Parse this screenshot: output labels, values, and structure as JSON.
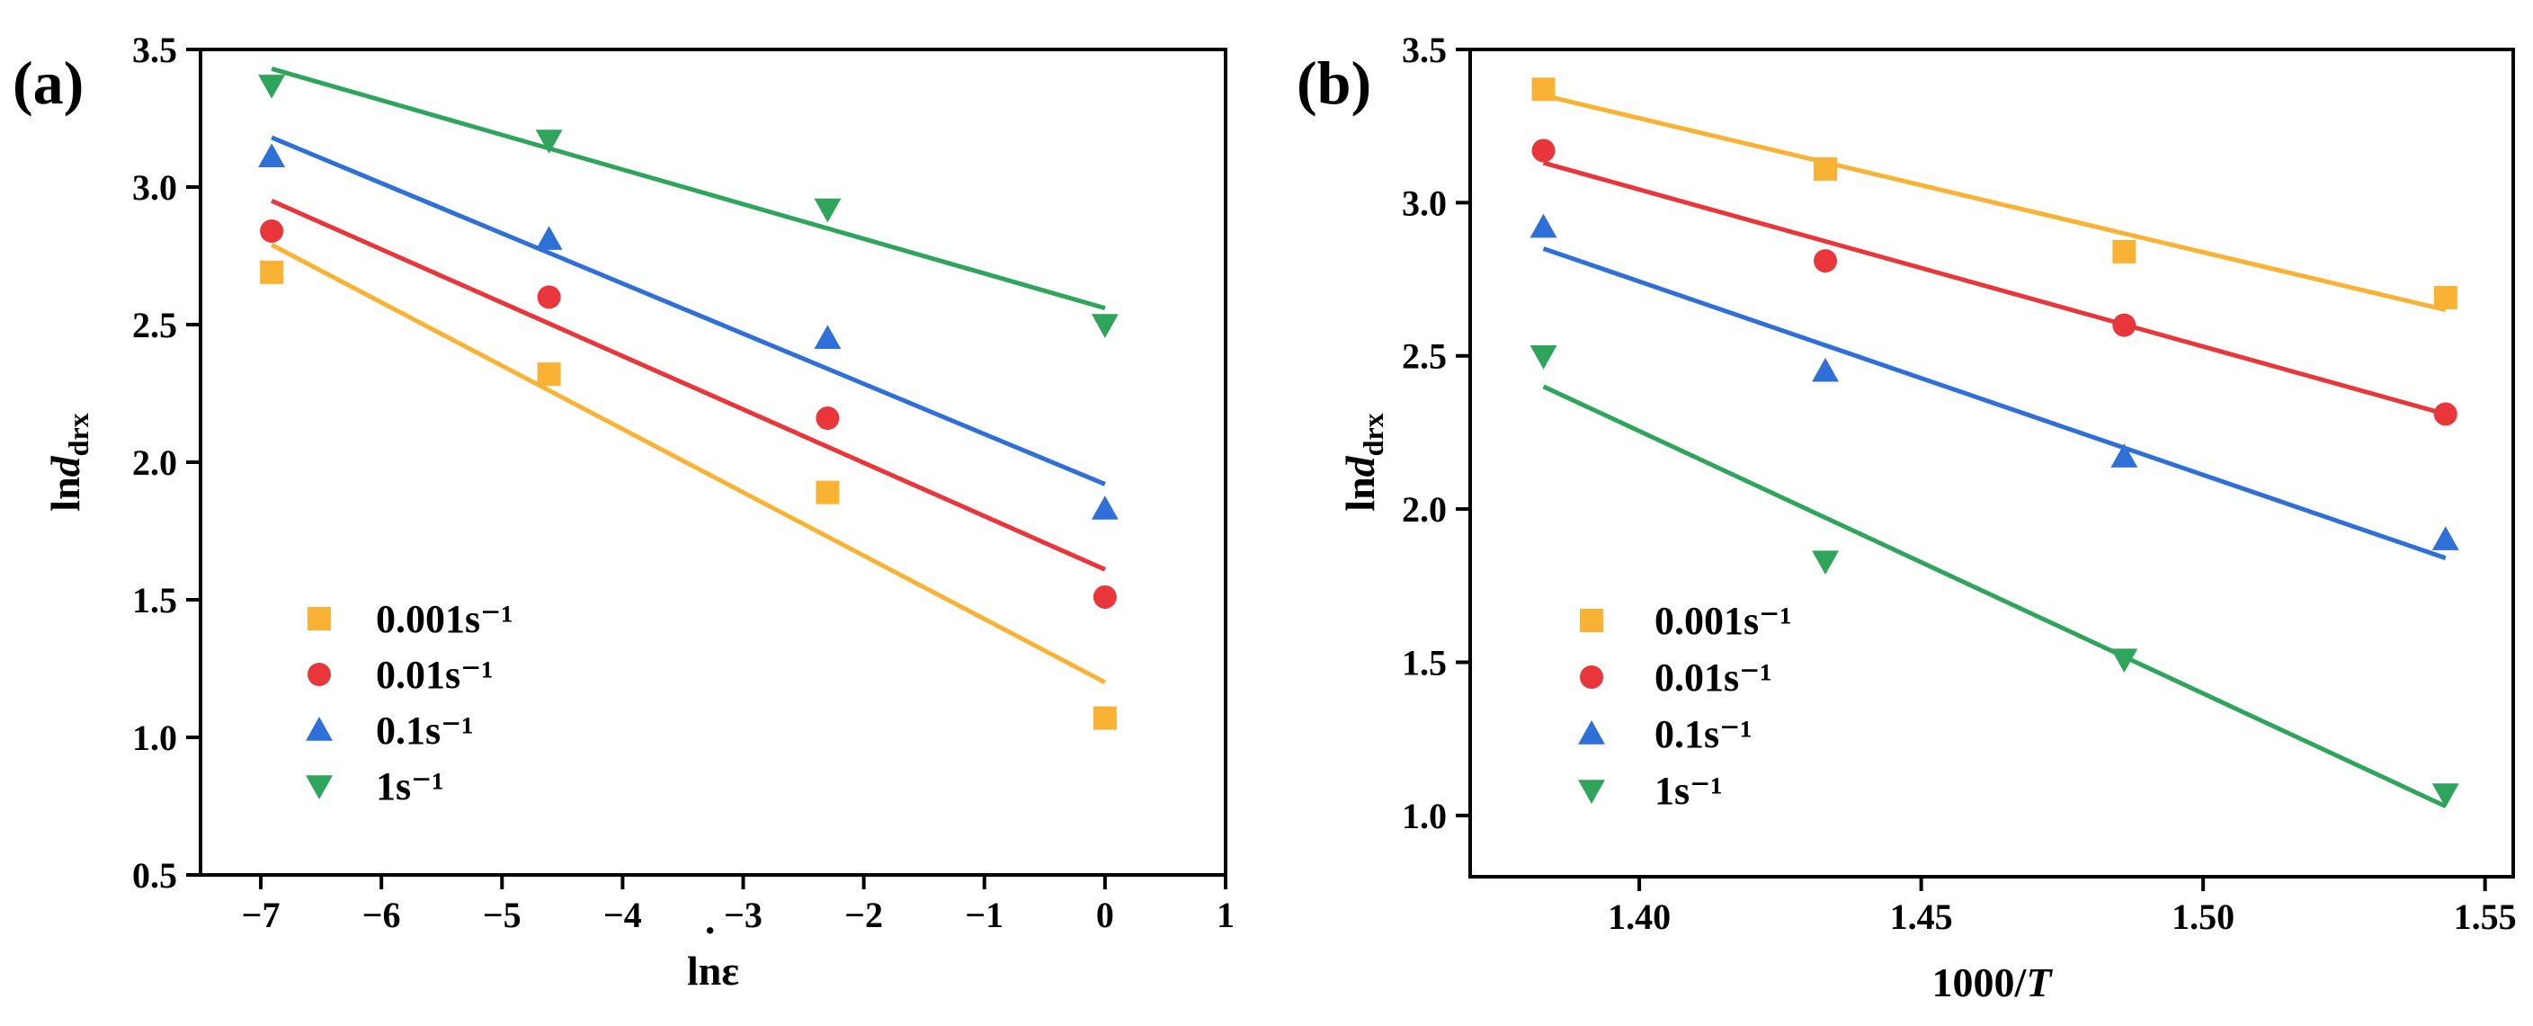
{
  "colors": {
    "0.001s^-1": "#f9b233",
    "0.01s^-1": "#e8363a",
    "0.1s^-1": "#2f6fd8",
    "1s^-1": "#2ea55a"
  },
  "chart_data": [
    {
      "panel_label": "(a)",
      "type": "scatter",
      "xlabel": "lnε̇",
      "xlabel_display": {
        "prefix": "ln",
        "symbol": "ε",
        "dot": "·"
      },
      "ylabel": "lnd_drx",
      "ylabel_display": {
        "prefix": "ln",
        "italic": "d",
        "sub": "drx"
      },
      "xlim": [
        -7.5,
        1
      ],
      "ylim": [
        0.5,
        3.5
      ],
      "x_ticks": [
        -7,
        -6,
        -5,
        -4,
        -3,
        -2,
        -1,
        0,
        1
      ],
      "x_tick_labels": [
        "−7",
        "−6",
        "−5",
        "−4",
        "−3",
        "−2",
        "−1",
        "0",
        "1"
      ],
      "y_ticks": [
        0.5,
        1.0,
        1.5,
        2.0,
        2.5,
        3.0,
        3.5
      ],
      "y_tick_labels": [
        "0.5",
        "1.0",
        "1.5",
        "2.0",
        "2.5",
        "3.0",
        "3.5"
      ],
      "legend_location": "bottom-left",
      "series": [
        {
          "name": "0.001s⁻¹",
          "key": "0.001s^-1",
          "marker": "square",
          "x": [
            -6.91,
            -4.61,
            -2.3,
            0
          ],
          "y": [
            2.69,
            2.32,
            1.89,
            1.07
          ],
          "fit": {
            "x": [
              -6.91,
              0
            ],
            "y": [
              2.79,
              1.2
            ]
          }
        },
        {
          "name": "0.01s⁻¹",
          "key": "0.01s^-1",
          "marker": "circle",
          "x": [
            -6.91,
            -4.61,
            -2.3,
            0
          ],
          "y": [
            2.84,
            2.6,
            2.16,
            1.51
          ],
          "fit": {
            "x": [
              -6.91,
              0
            ],
            "y": [
              2.95,
              1.61
            ]
          }
        },
        {
          "name": "0.1s⁻¹",
          "key": "0.1s^-1",
          "marker": "triangle-up",
          "x": [
            -6.91,
            -4.61,
            -2.3,
            0
          ],
          "y": [
            3.11,
            2.81,
            2.45,
            1.83
          ],
          "fit": {
            "x": [
              -6.91,
              0
            ],
            "y": [
              3.18,
              1.92
            ]
          }
        },
        {
          "name": "1s⁻¹",
          "key": "1s^-1",
          "marker": "triangle-down",
          "x": [
            -6.91,
            -4.61,
            -2.3,
            0
          ],
          "y": [
            3.37,
            3.17,
            2.92,
            2.5
          ],
          "fit": {
            "x": [
              -6.91,
              0
            ],
            "y": [
              3.43,
              2.56
            ]
          }
        }
      ]
    },
    {
      "panel_label": "(b)",
      "type": "scatter",
      "xlabel": "1000/T",
      "xlabel_display": {
        "prefix": "1000/",
        "italic": "T"
      },
      "ylabel": "lnd_drx",
      "ylabel_display": {
        "prefix": "ln",
        "italic": "d",
        "sub": "drx"
      },
      "xlim": [
        1.37,
        1.555
      ],
      "ylim": [
        0.8,
        3.5
      ],
      "x_ticks": [
        1.4,
        1.45,
        1.5,
        1.55
      ],
      "x_tick_labels": [
        "1.40",
        "1.45",
        "1.50",
        "1.55"
      ],
      "y_ticks": [
        1.0,
        1.5,
        2.0,
        2.5,
        3.0,
        3.5
      ],
      "y_tick_labels": [
        "1.0",
        "1.5",
        "2.0",
        "2.5",
        "3.0",
        "3.5"
      ],
      "legend_location": "bottom-left",
      "series": [
        {
          "name": "0.001s⁻¹",
          "key": "0.001s^-1",
          "marker": "square",
          "x": [
            1.383,
            1.433,
            1.486,
            1.543
          ],
          "y": [
            3.37,
            3.11,
            2.84,
            2.69
          ],
          "fit": {
            "x": [
              1.383,
              1.543
            ],
            "y": [
              3.35,
              2.65
            ]
          }
        },
        {
          "name": "0.01s⁻¹",
          "key": "0.01s^-1",
          "marker": "circle",
          "x": [
            1.383,
            1.433,
            1.486,
            1.543
          ],
          "y": [
            3.17,
            2.81,
            2.6,
            2.31
          ],
          "fit": {
            "x": [
              1.383,
              1.543
            ],
            "y": [
              3.13,
              2.31
            ]
          }
        },
        {
          "name": "0.1s⁻¹",
          "key": "0.1s^-1",
          "marker": "triangle-up",
          "x": [
            1.383,
            1.433,
            1.486,
            1.543
          ],
          "y": [
            2.92,
            2.45,
            2.17,
            1.9
          ],
          "fit": {
            "x": [
              1.383,
              1.543
            ],
            "y": [
              2.85,
              1.84
            ]
          }
        },
        {
          "name": "1s⁻¹",
          "key": "1s^-1",
          "marker": "triangle-down",
          "x": [
            1.383,
            1.433,
            1.486,
            1.543
          ],
          "y": [
            2.5,
            1.83,
            1.51,
            1.07
          ],
          "fit": {
            "x": [
              1.383,
              1.543
            ],
            "y": [
              2.4,
              1.03
            ]
          }
        }
      ]
    }
  ]
}
